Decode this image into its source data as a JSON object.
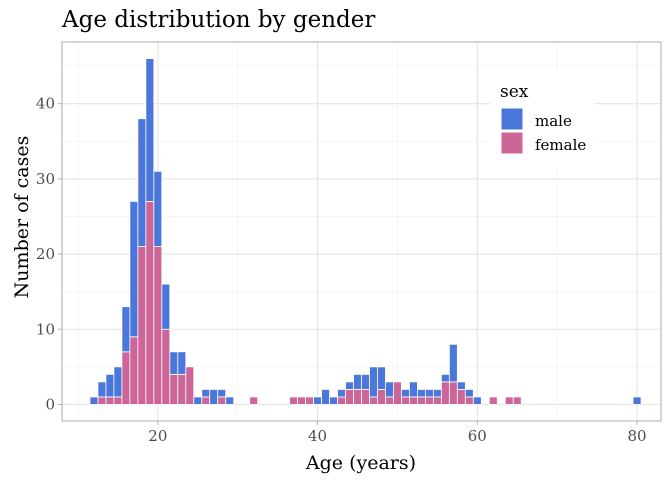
{
  "chart_data": {
    "type": "bar",
    "stacked": true,
    "title": "Age distribution by gender",
    "xlabel": "Age (years)",
    "ylabel": "Number of cases",
    "xlim": [
      8,
      83
    ],
    "ylim": [
      -2.2,
      48.2
    ],
    "x_ticks": [
      20,
      40,
      60,
      80
    ],
    "y_ticks": [
      0,
      10,
      20,
      30,
      40
    ],
    "grid": true,
    "legend": {
      "title": "sex",
      "position": "top-right"
    },
    "x": [
      12,
      13,
      14,
      15,
      16,
      17,
      18,
      19,
      20,
      21,
      22,
      23,
      24,
      25,
      26,
      27,
      28,
      29,
      30,
      31,
      32,
      33,
      34,
      35,
      36,
      37,
      38,
      39,
      40,
      41,
      42,
      43,
      44,
      45,
      46,
      47,
      48,
      49,
      50,
      51,
      52,
      53,
      54,
      55,
      56,
      57,
      58,
      59,
      60,
      61,
      62,
      63,
      64,
      65,
      66,
      67,
      68,
      69,
      70,
      71,
      72,
      73,
      74,
      75,
      76,
      77,
      78,
      79,
      80
    ],
    "series": [
      {
        "name": "female",
        "color": "#CC6699",
        "values": [
          0,
          1,
          1,
          1,
          7,
          9,
          21,
          27,
          21,
          10,
          4,
          4,
          5,
          0,
          1,
          0,
          1,
          0,
          0,
          0,
          1,
          0,
          0,
          0,
          0,
          1,
          1,
          1,
          0,
          0,
          0,
          1,
          2,
          2,
          2,
          1,
          2,
          1,
          3,
          1,
          1,
          1,
          1,
          1,
          3,
          3,
          2,
          1,
          0,
          0,
          1,
          0,
          1,
          1,
          0,
          0,
          0,
          0,
          0,
          0,
          0,
          0,
          0,
          0,
          0,
          0,
          0,
          0,
          0
        ]
      },
      {
        "name": "male",
        "color": "#4A77D9",
        "values": [
          1,
          2,
          3,
          4,
          6,
          18,
          17,
          19,
          10,
          6,
          3,
          3,
          0,
          1,
          1,
          2,
          1,
          1,
          0,
          0,
          0,
          0,
          0,
          0,
          0,
          0,
          0,
          0,
          1,
          2,
          1,
          1,
          1,
          2,
          2,
          4,
          3,
          2,
          0,
          1,
          2,
          1,
          1,
          1,
          1,
          5,
          1,
          1,
          1,
          0,
          0,
          0,
          0,
          0,
          0,
          0,
          0,
          0,
          0,
          0,
          0,
          0,
          0,
          0,
          0,
          0,
          0,
          0,
          1
        ]
      }
    ]
  }
}
